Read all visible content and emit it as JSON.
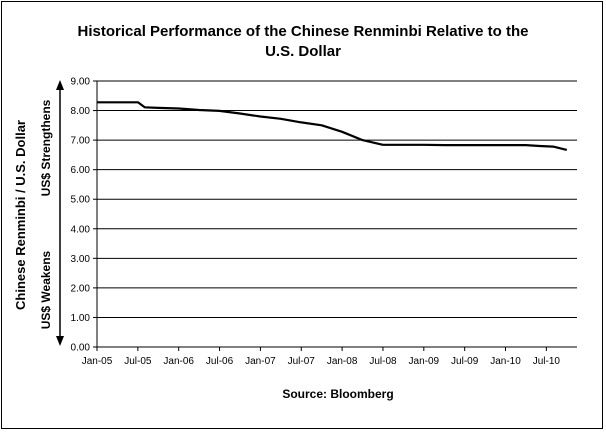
{
  "chart_data": {
    "type": "line",
    "title_line1": "Historical Performance of the Chinese Renminbi Relative to the",
    "title_line2": "U.S. Dollar",
    "ylabel": "Chinese Renminbi / U.S. Dollar",
    "arrow_up_label": "US$ Strengthens",
    "arrow_down_label": "US$ Weakens",
    "source": "Source: Bloomberg",
    "ylim": [
      0,
      9
    ],
    "yticks": [
      "0.00",
      "1.00",
      "2.00",
      "3.00",
      "4.00",
      "5.00",
      "6.00",
      "7.00",
      "8.00",
      "9.00"
    ],
    "xticks": [
      "Jan-05",
      "Jul-05",
      "Jan-06",
      "Jul-06",
      "Jan-07",
      "Jul-07",
      "Jan-08",
      "Jul-08",
      "Jan-09",
      "Jul-09",
      "Jan-10",
      "Jul-10"
    ],
    "grid": "horizontal",
    "colors": {
      "line": "#000000",
      "grid": "#000000"
    },
    "series": [
      {
        "x": [
          "2005-01",
          "2005-07",
          "2005-08",
          "2005-10",
          "2006-01",
          "2006-04",
          "2006-07",
          "2006-10",
          "2007-01",
          "2007-04",
          "2007-07",
          "2007-10",
          "2008-01",
          "2008-04",
          "2008-07",
          "2008-10",
          "2009-01",
          "2009-04",
          "2009-07",
          "2009-10",
          "2010-01",
          "2010-04",
          "2010-06",
          "2010-08",
          "2010-10"
        ],
        "values": [
          8.28,
          8.28,
          8.11,
          8.09,
          8.07,
          8.02,
          7.99,
          7.9,
          7.8,
          7.72,
          7.6,
          7.5,
          7.28,
          7.0,
          6.84,
          6.84,
          6.84,
          6.83,
          6.83,
          6.83,
          6.83,
          6.83,
          6.8,
          6.78,
          6.67
        ]
      }
    ]
  }
}
